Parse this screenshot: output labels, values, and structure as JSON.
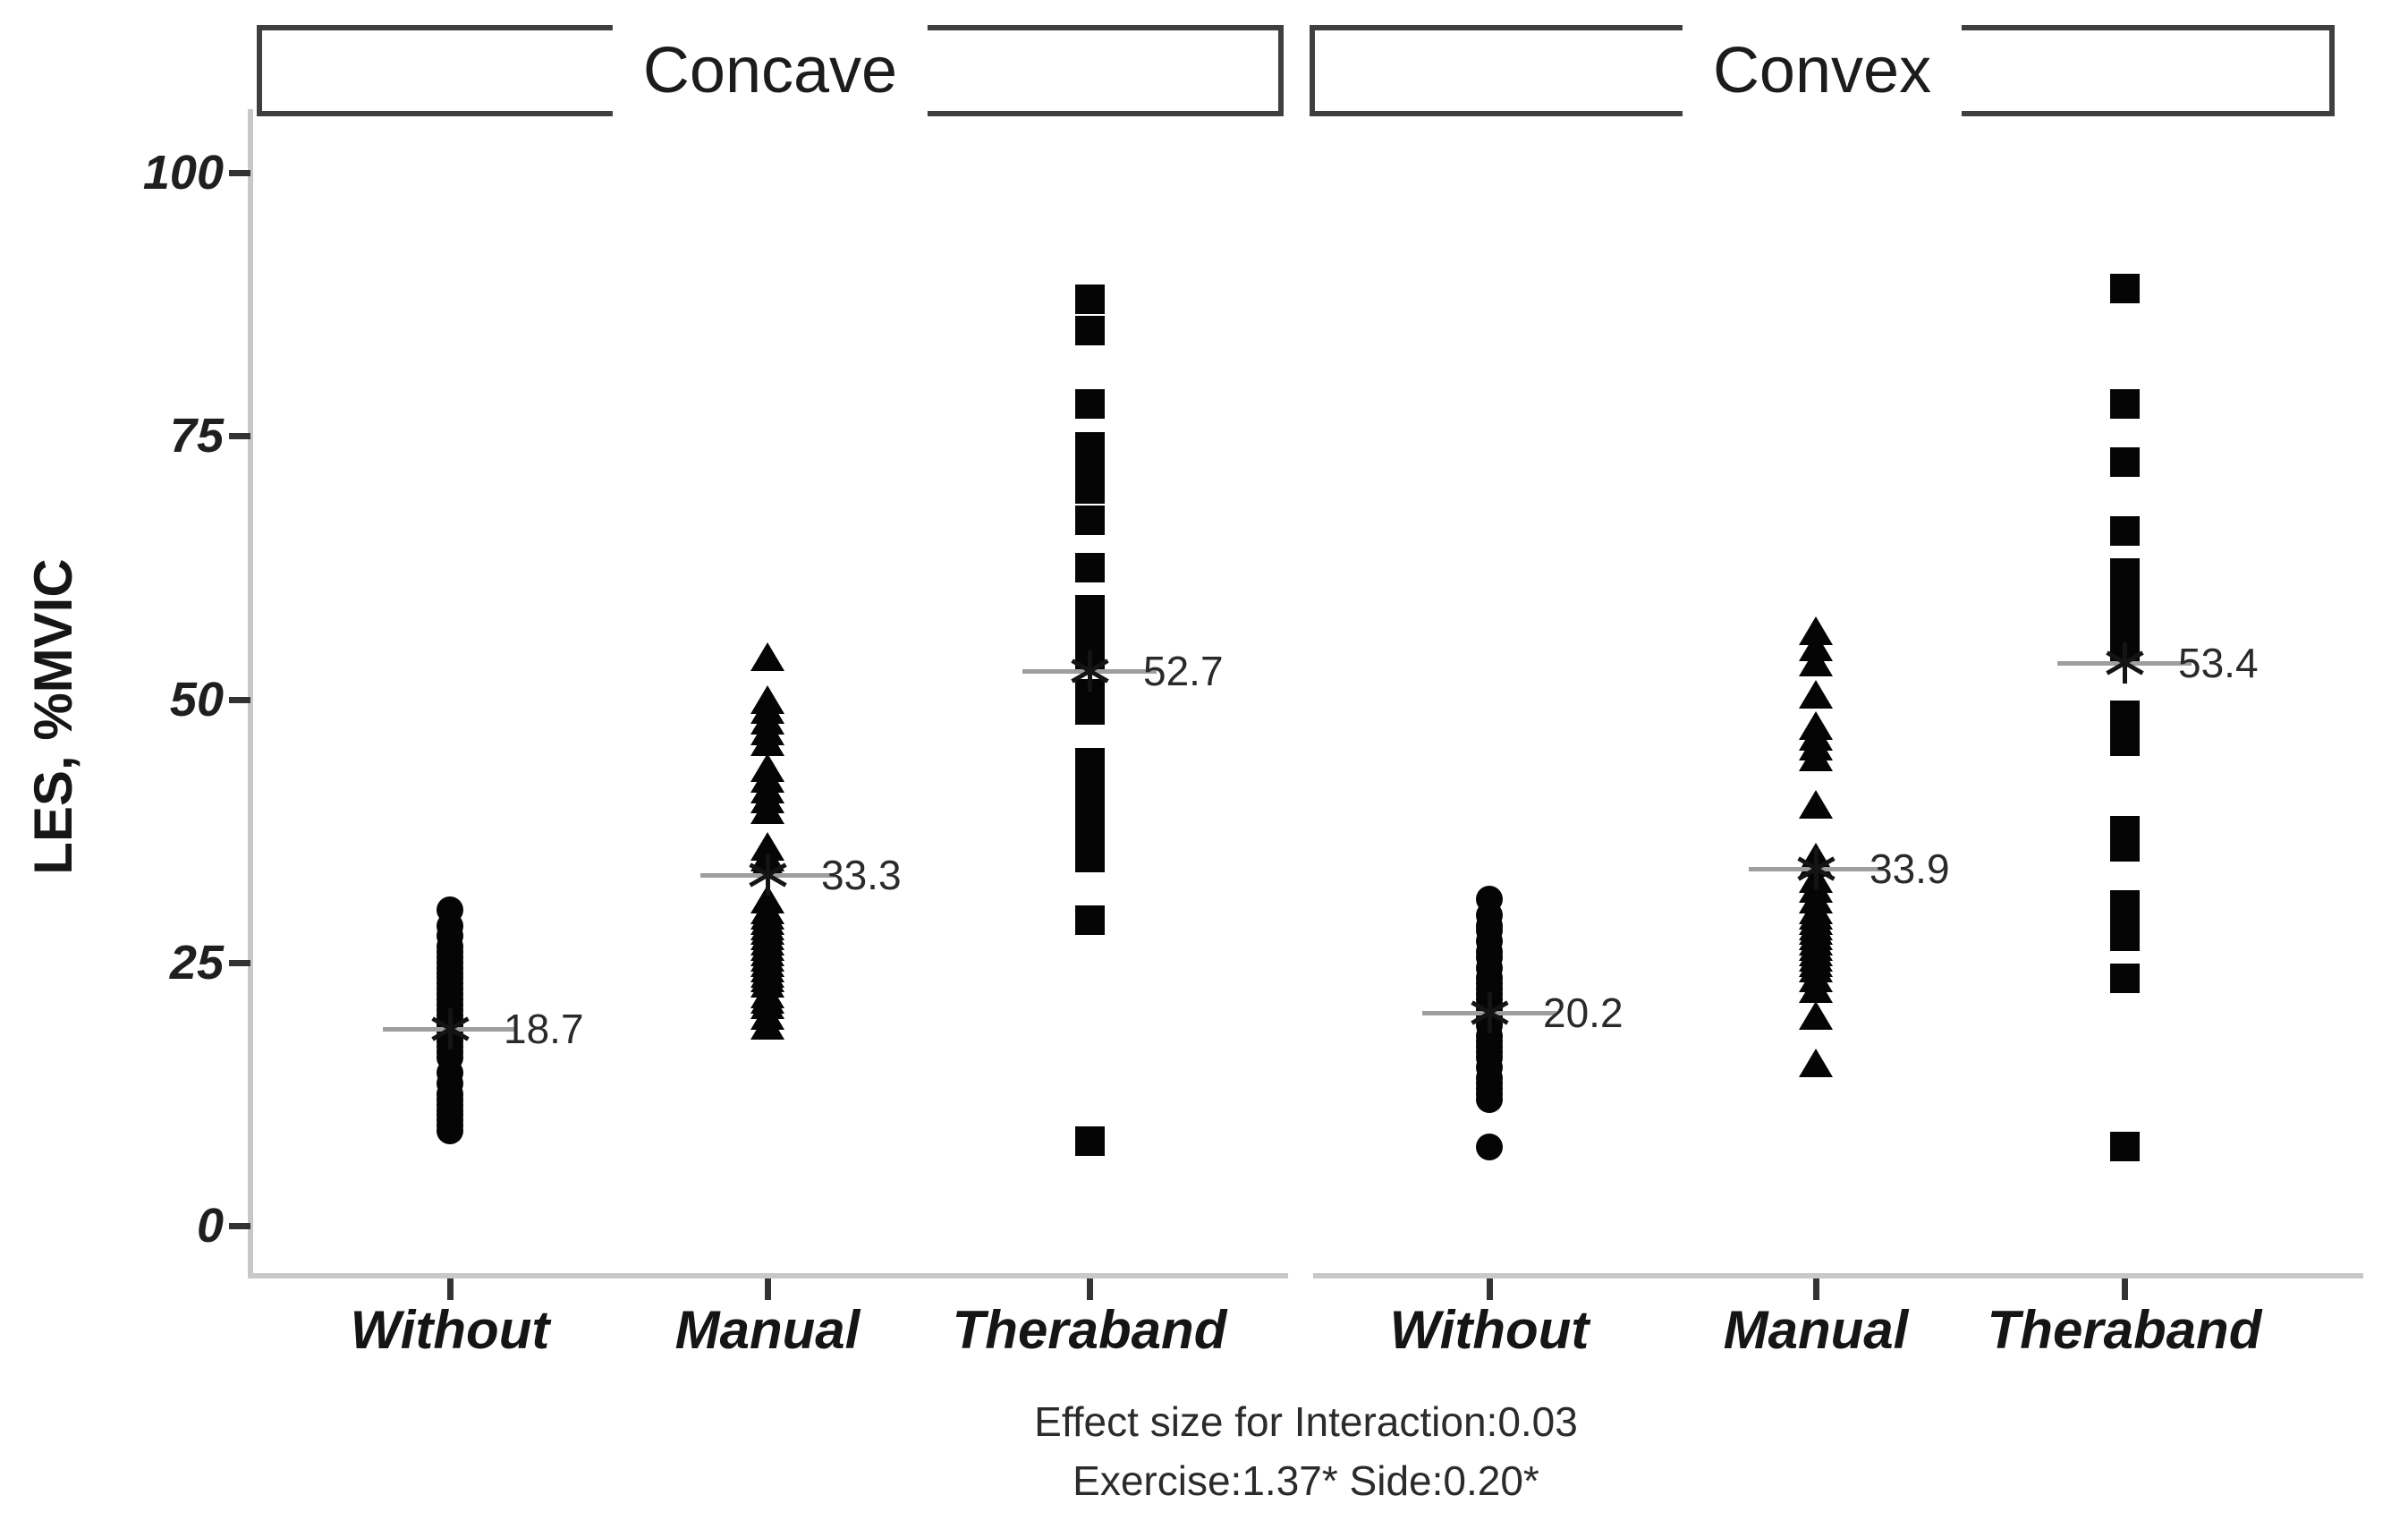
{
  "chart_data": {
    "type": "scatter",
    "subtype": "dot-strip-plot",
    "title": "",
    "ylabel": "LES, %MVIC",
    "xlabel": "",
    "ylim": [
      0,
      100
    ],
    "yticks": [
      "0",
      "25",
      "50",
      "75",
      "100"
    ],
    "ytick_values": [
      0,
      25,
      50,
      75,
      100
    ],
    "grid": "off",
    "legend": "none",
    "point_color": "#000000",
    "facets": [
      "Concave",
      "Convex"
    ],
    "categories": [
      "Without",
      "Manual",
      "Theraband"
    ],
    "marker_by_category": {
      "Without": "circle",
      "Manual": "triangle",
      "Theraband": "square"
    },
    "groups": [
      {
        "facet": "Concave",
        "category": "Without",
        "marker": "circle",
        "mean": 18.7,
        "mean_label": "18.7",
        "values": [
          30,
          28.5,
          27.5,
          26.5,
          26,
          25.5,
          25,
          24.5,
          24,
          23.5,
          23,
          22.5,
          22,
          21.5,
          21,
          20.5,
          20,
          19.5,
          19,
          18.5,
          18,
          17.5,
          17,
          16.5,
          16,
          14.5,
          13.5,
          12.5,
          12,
          11.5,
          11,
          10.5,
          10,
          9.5,
          9
        ]
      },
      {
        "facet": "Concave",
        "category": "Manual",
        "marker": "triangle",
        "mean": 33.3,
        "mean_label": "33.3",
        "values": [
          54,
          50,
          49,
          48,
          47,
          46,
          43.5,
          42.5,
          41.5,
          40.5,
          39.5,
          36,
          35,
          34.5,
          31,
          30,
          29.5,
          29,
          28.5,
          28,
          27.5,
          27,
          26.5,
          26,
          25.5,
          25,
          24.5,
          24,
          23.5,
          23,
          22,
          21.5,
          21,
          20,
          19
        ]
      },
      {
        "facet": "Concave",
        "category": "Theraband",
        "marker": "square",
        "mean": 52.7,
        "mean_label": "52.7",
        "values": [
          88,
          85,
          78,
          74,
          72.5,
          71,
          70,
          67,
          62.5,
          58.5,
          57,
          56,
          55,
          54,
          50.5,
          49,
          44,
          42.5,
          41,
          39.5,
          38,
          36.5,
          35,
          29,
          8
        ]
      },
      {
        "facet": "Convex",
        "category": "Without",
        "marker": "circle",
        "mean": 20.2,
        "mean_label": "20.2",
        "values": [
          31,
          29.5,
          28.5,
          28,
          27,
          26,
          25.5,
          24.5,
          23.5,
          23,
          22.5,
          22,
          21.5,
          21,
          20.5,
          20,
          19.5,
          19,
          18,
          17.5,
          17,
          16.5,
          16,
          15,
          14,
          13.5,
          13,
          12.5,
          12,
          7.5
        ]
      },
      {
        "facet": "Convex",
        "category": "Manual",
        "marker": "triangle",
        "mean": 33.9,
        "mean_label": "33.9",
        "values": [
          56.5,
          55,
          53.5,
          50.5,
          47.5,
          46.5,
          45.5,
          44.5,
          40,
          35,
          34.5,
          33,
          32,
          31,
          30,
          29.5,
          29,
          28.5,
          28,
          27.5,
          27,
          26.5,
          26,
          25.5,
          25,
          24.5,
          23.5,
          22.5,
          20,
          15.5
        ]
      },
      {
        "facet": "Convex",
        "category": "Theraband",
        "marker": "square",
        "mean": 53.4,
        "mean_label": "53.4",
        "values": [
          89,
          78,
          72.5,
          66,
          62,
          60.5,
          59,
          57.5,
          56,
          55,
          48.5,
          47,
          46,
          37.5,
          36,
          30.5,
          29,
          27.5,
          23.5,
          7.5
        ]
      }
    ],
    "caption_lines": [
      "Effect size for Interaction:0.03",
      "Exercise:1.37*  Side:0.20*"
    ]
  }
}
